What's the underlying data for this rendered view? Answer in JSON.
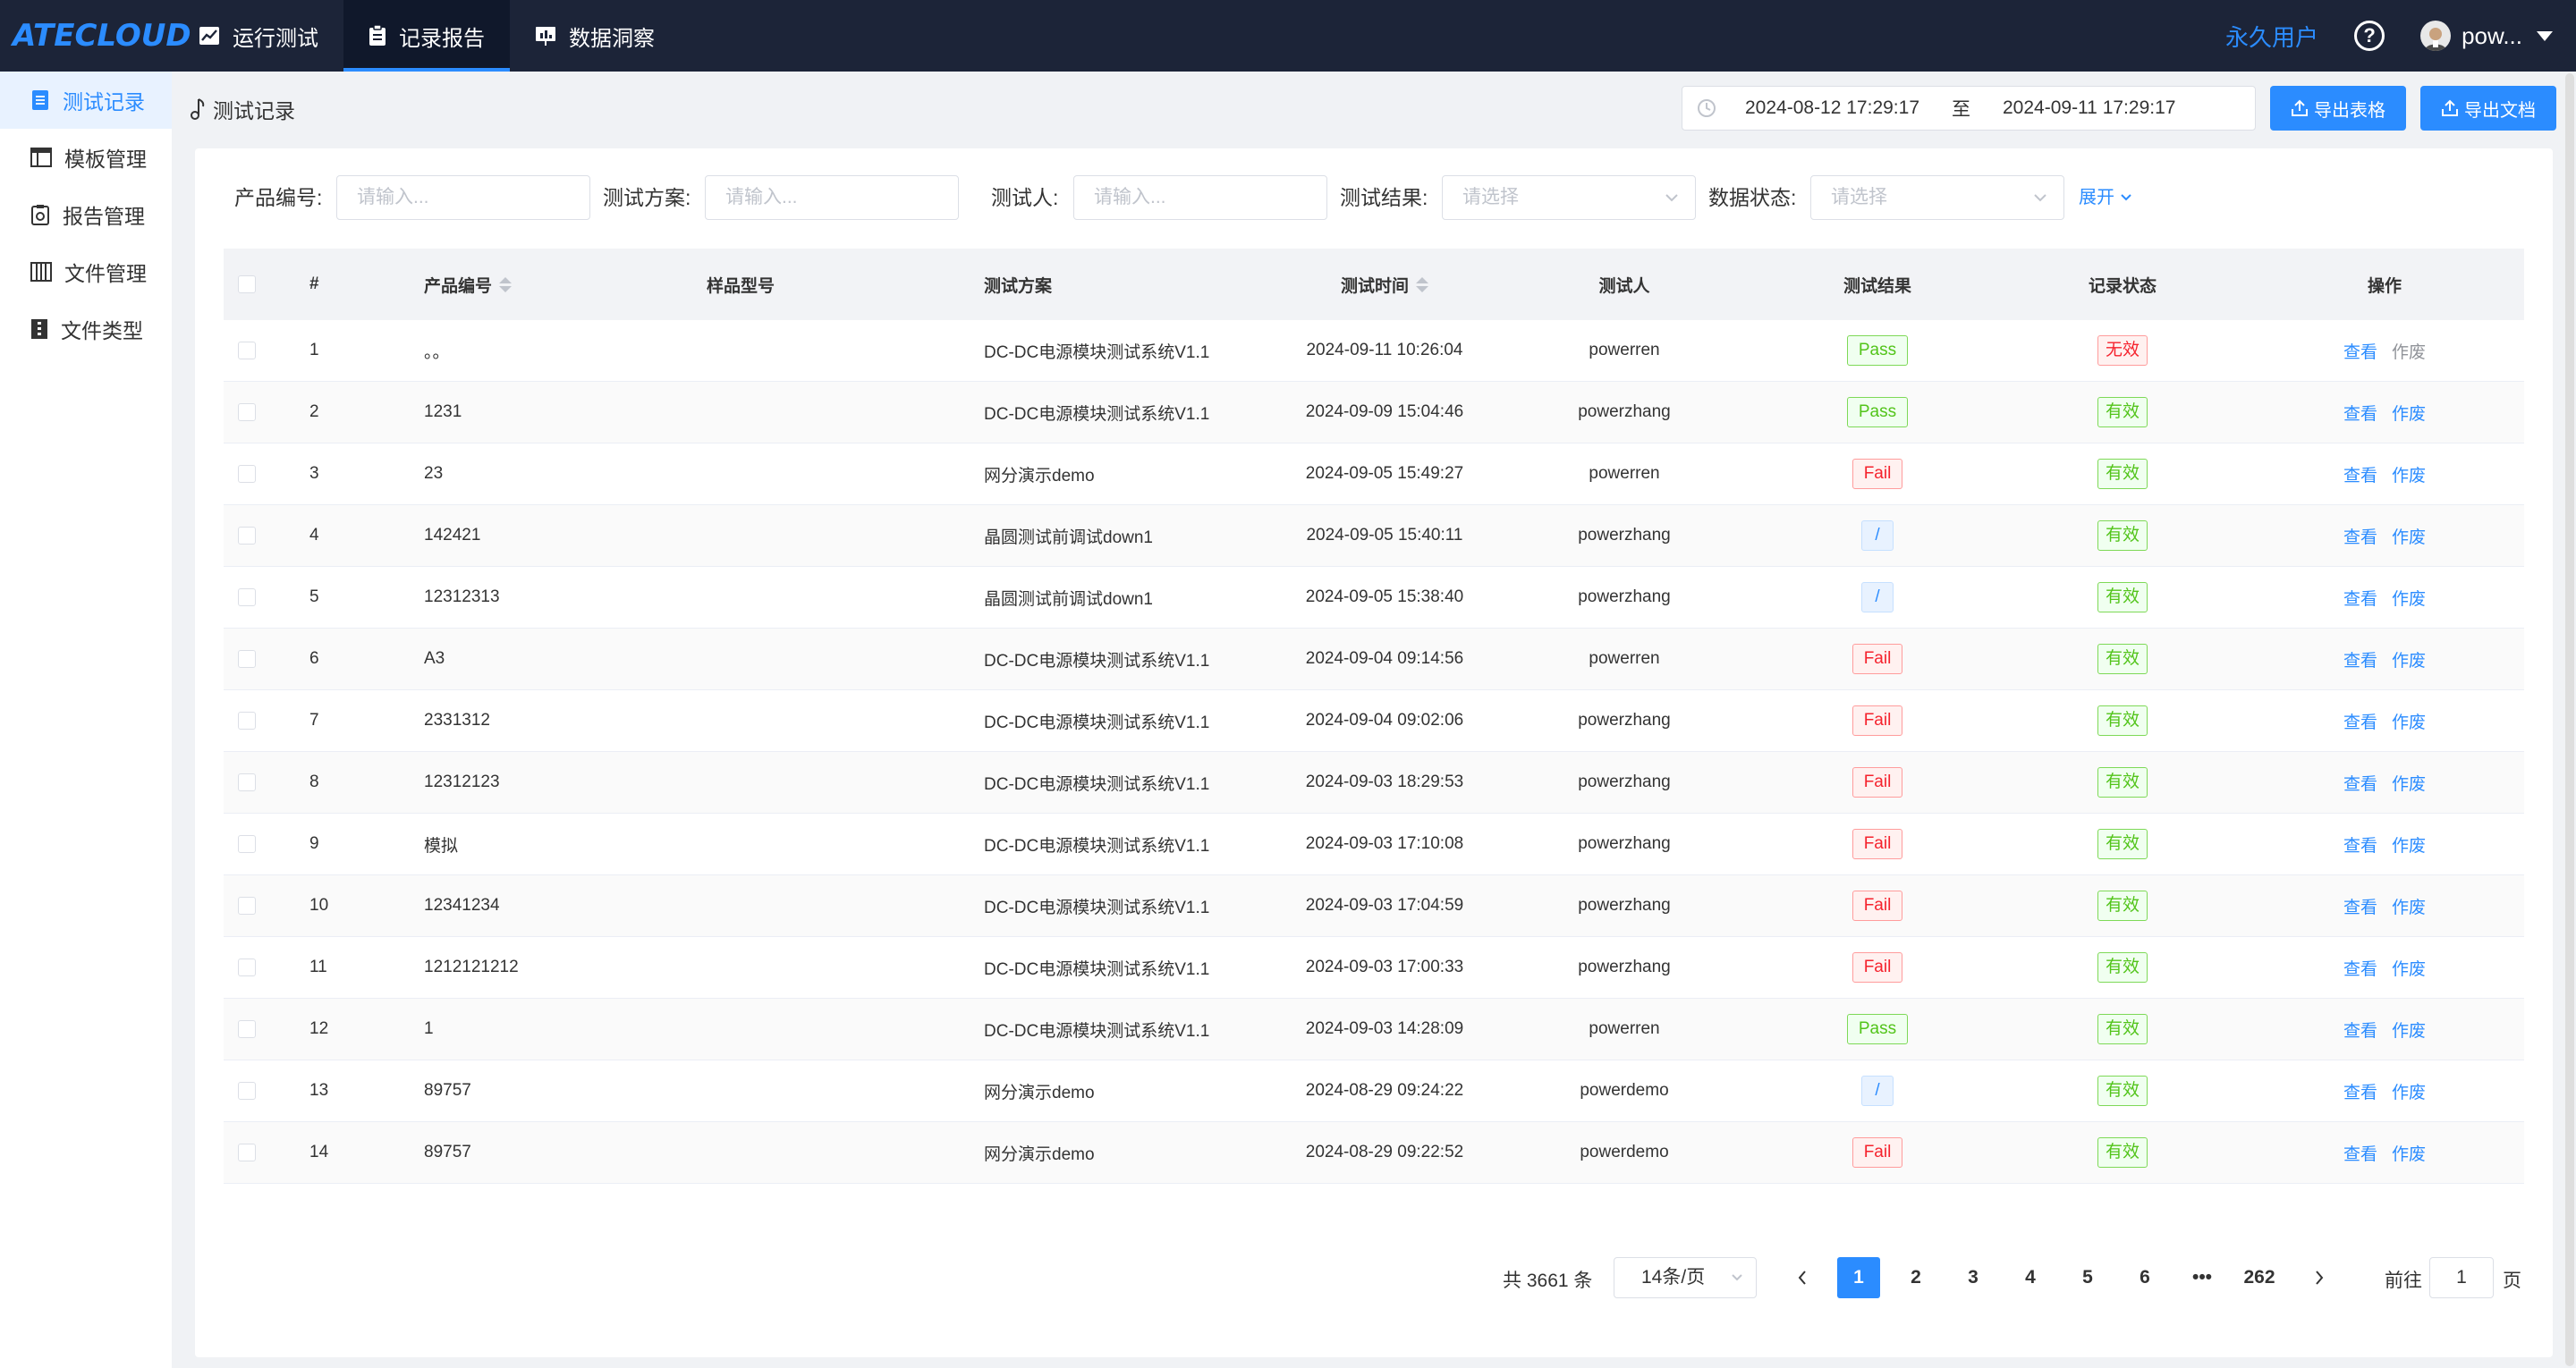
{
  "app": {
    "logo": "ATECLOUD",
    "nav": [
      {
        "label": "运行测试",
        "icon": "chart-icon"
      },
      {
        "label": "记录报告",
        "icon": "clipboard-icon"
      },
      {
        "label": "数据洞察",
        "icon": "presentation-icon"
      }
    ],
    "active_nav": 1,
    "user_level": "永久用户",
    "username": "pow..."
  },
  "sidebar": {
    "items": [
      {
        "label": "测试记录",
        "icon": "document-icon"
      },
      {
        "label": "模板管理",
        "icon": "table-icon"
      },
      {
        "label": "报告管理",
        "icon": "report-icon"
      },
      {
        "label": "文件管理",
        "icon": "folder-icon"
      },
      {
        "label": "文件类型",
        "icon": "file-type-icon"
      }
    ],
    "active": 0
  },
  "breadcrumb": {
    "label": "测试记录"
  },
  "date_range": {
    "start": "2024-08-12 17:29:17",
    "separator": "至",
    "end": "2024-09-11 17:29:17"
  },
  "actions": {
    "export_table": "导出表格",
    "export_doc": "导出文档"
  },
  "filters": {
    "product_code": {
      "label": "产品编号:",
      "placeholder": "请输入..."
    },
    "test_plan": {
      "label": "测试方案:",
      "placeholder": "请输入..."
    },
    "tester": {
      "label": "测试人:",
      "placeholder": "请输入..."
    },
    "test_result": {
      "label": "测试结果:",
      "placeholder": "请选择"
    },
    "data_state": {
      "label": "数据状态:",
      "placeholder": "请选择"
    },
    "expand": "展开"
  },
  "table": {
    "headers": {
      "idx": "#",
      "code": "产品编号",
      "model": "样品型号",
      "plan": "测试方案",
      "time": "测试时间",
      "user": "测试人",
      "result": "测试结果",
      "state": "记录状态",
      "op": "操作"
    },
    "rows": [
      {
        "idx": "1",
        "code": "。。",
        "model": "",
        "plan": "DC-DC电源模块测试系统V1.1",
        "time": "2024-09-11 10:26:04",
        "user": "powerren",
        "result": "Pass",
        "state": "无效"
      },
      {
        "idx": "2",
        "code": "1231",
        "model": "",
        "plan": "DC-DC电源模块测试系统V1.1",
        "time": "2024-09-09 15:04:46",
        "user": "powerzhang",
        "result": "Pass",
        "state": "有效"
      },
      {
        "idx": "3",
        "code": "23",
        "model": "",
        "plan": "网分演示demo",
        "time": "2024-09-05 15:49:27",
        "user": "powerren",
        "result": "Fail",
        "state": "有效"
      },
      {
        "idx": "4",
        "code": "142421",
        "model": "",
        "plan": "晶圆测试前调试down1",
        "time": "2024-09-05 15:40:11",
        "user": "powerzhang",
        "result": "/",
        "state": "有效"
      },
      {
        "idx": "5",
        "code": "12312313",
        "model": "",
        "plan": "晶圆测试前调试down1",
        "time": "2024-09-05 15:38:40",
        "user": "powerzhang",
        "result": "/",
        "state": "有效"
      },
      {
        "idx": "6",
        "code": "A3",
        "model": "",
        "plan": "DC-DC电源模块测试系统V1.1",
        "time": "2024-09-04 09:14:56",
        "user": "powerren",
        "result": "Fail",
        "state": "有效"
      },
      {
        "idx": "7",
        "code": "2331312",
        "model": "",
        "plan": "DC-DC电源模块测试系统V1.1",
        "time": "2024-09-04 09:02:06",
        "user": "powerzhang",
        "result": "Fail",
        "state": "有效"
      },
      {
        "idx": "8",
        "code": "12312123",
        "model": "",
        "plan": "DC-DC电源模块测试系统V1.1",
        "time": "2024-09-03 18:29:53",
        "user": "powerzhang",
        "result": "Fail",
        "state": "有效"
      },
      {
        "idx": "9",
        "code": "模拟",
        "model": "",
        "plan": "DC-DC电源模块测试系统V1.1",
        "time": "2024-09-03 17:10:08",
        "user": "powerzhang",
        "result": "Fail",
        "state": "有效"
      },
      {
        "idx": "10",
        "code": "12341234",
        "model": "",
        "plan": "DC-DC电源模块测试系统V1.1",
        "time": "2024-09-03 17:04:59",
        "user": "powerzhang",
        "result": "Fail",
        "state": "有效"
      },
      {
        "idx": "11",
        "code": "1212121212",
        "model": "",
        "plan": "DC-DC电源模块测试系统V1.1",
        "time": "2024-09-03 17:00:33",
        "user": "powerzhang",
        "result": "Fail",
        "state": "有效"
      },
      {
        "idx": "12",
        "code": "1",
        "model": "",
        "plan": "DC-DC电源模块测试系统V1.1",
        "time": "2024-09-03 14:28:09",
        "user": "powerren",
        "result": "Pass",
        "state": "有效"
      },
      {
        "idx": "13",
        "code": "89757",
        "model": "",
        "plan": "网分演示demo",
        "time": "2024-08-29 09:24:22",
        "user": "powerdemo",
        "result": "/",
        "state": "有效"
      },
      {
        "idx": "14",
        "code": "89757",
        "model": "",
        "plan": "网分演示demo",
        "time": "2024-08-29 09:22:52",
        "user": "powerdemo",
        "result": "Fail",
        "state": "有效"
      }
    ],
    "op_view": "查看",
    "op_void": "作废"
  },
  "pagination": {
    "total": "共 3661 条",
    "page_size": "14条/页",
    "pages": [
      "1",
      "2",
      "3",
      "4",
      "5",
      "6",
      "•••",
      "262"
    ],
    "current": "1",
    "goto_label": "前往",
    "goto_value": "1",
    "page_word": "页"
  },
  "colors": {
    "accent": "#2b8cff",
    "topbar": "#1c2438",
    "pass": "#52c41a",
    "fail": "#f5222d"
  }
}
